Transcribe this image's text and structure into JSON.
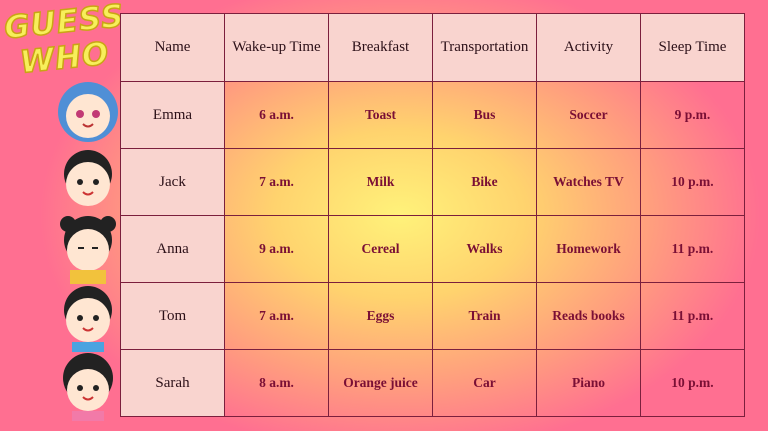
{
  "title": [
    "GUESS",
    "WHO"
  ],
  "table": {
    "header": [
      "Name",
      "Wake-up Time",
      "Breakfast",
      "Transportation",
      "Activity",
      "Sleep Time"
    ],
    "rows": [
      [
        "Emma",
        "6 a.m.",
        "Toast",
        "Bus",
        "Soccer",
        "9 p.m."
      ],
      [
        "Jack",
        "7 a.m.",
        "Milk",
        "Bike",
        "Watches TV",
        "10 p.m."
      ],
      [
        "Anna",
        "9 a.m.",
        "Cereal",
        "Walks",
        "Homework",
        "11 p.m."
      ],
      [
        "Tom",
        "7 a.m.",
        "Eggs",
        "Train",
        "Reads books",
        "11 p.m."
      ],
      [
        "Sarah",
        "8 a.m.",
        "Orange juice",
        "Car",
        "Piano",
        "10 p.m."
      ]
    ]
  }
}
